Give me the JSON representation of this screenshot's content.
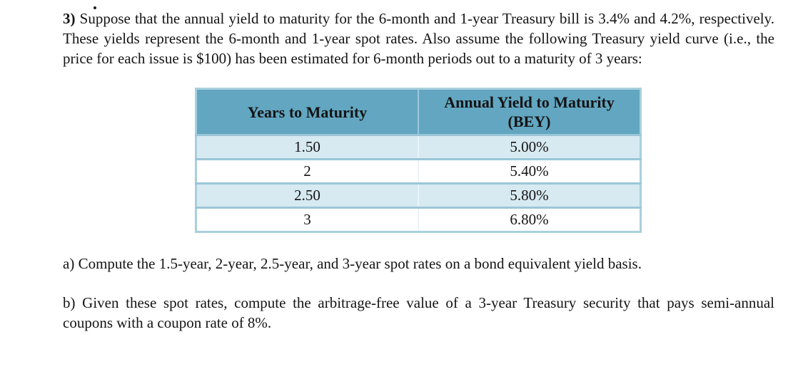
{
  "document": {
    "problem": {
      "number": "3)",
      "text": "Suppose that the annual yield to maturity for the 6-month and 1-year Treasury bill is 3.4% and 4.2%, respectively. These yields represent the 6-month and 1-year spot rates. Also assume the following Treasury yield curve (i.e., the price for each issue is $100) has been estimated for 6-month periods out to a maturity of 3 years:"
    },
    "parts": [
      {
        "label": "a)",
        "text": "Compute the 1.5-year, 2-year, 2.5-year, and 3-year spot rates on a bond equivalent yield basis."
      },
      {
        "label": "b)",
        "text": "Given these spot rates, compute the arbitrage-free value of a 3-year Treasury security that pays semi-annual coupons with a coupon rate of 8%."
      }
    ]
  },
  "table": {
    "col1_header": "Years to Maturity",
    "col2_header_line1": "Annual Yield to Maturity",
    "col2_header_line2": "(BEY)",
    "rows": [
      {
        "years": "1.50",
        "yield": "5.00%"
      },
      {
        "years": "2",
        "yield": "5.40%"
      },
      {
        "years": "2.50",
        "yield": "5.80%"
      },
      {
        "years": "3",
        "yield": "6.80%"
      }
    ]
  },
  "colors": {
    "header_bg": "#62a6c1",
    "alt_row_bg": "#d7e9f1",
    "plain_row_bg": "#ffffff",
    "outer_border": "#a9cfdd",
    "row_separator": "#9ac6d8",
    "text": "#141414"
  }
}
